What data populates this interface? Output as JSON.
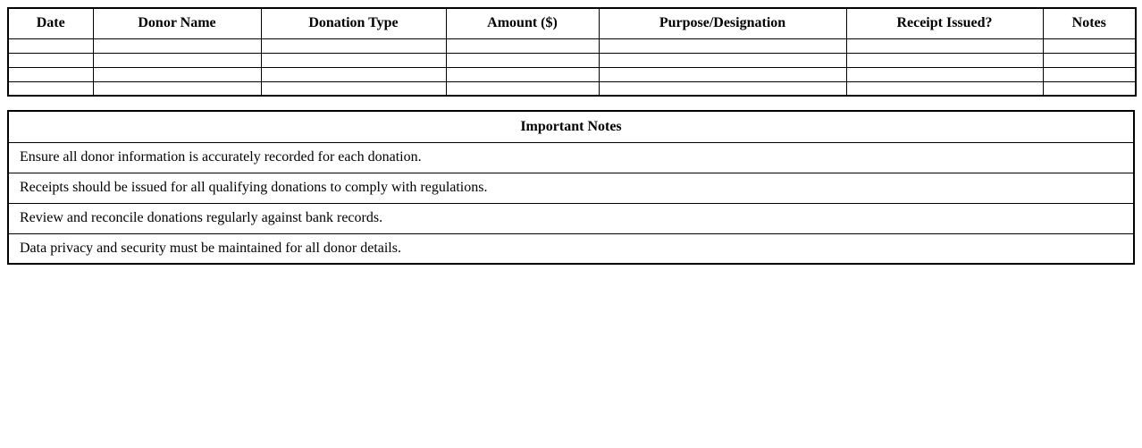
{
  "colors": {
    "background": "#ffffff",
    "border": "#000000",
    "text": "#000000"
  },
  "donation_table": {
    "headers": {
      "date": "Date",
      "donor_name": "Donor Name",
      "donation_type": "Donation Type",
      "amount": "Amount ($)",
      "purpose": "Purpose/Designation",
      "receipt_issued": "Receipt Issued?",
      "notes": "Notes"
    },
    "rows": [
      [
        "",
        "",
        "",
        "",
        "",
        "",
        ""
      ],
      [
        "",
        "",
        "",
        "",
        "",
        "",
        ""
      ],
      [
        "",
        "",
        "",
        "",
        "",
        "",
        ""
      ],
      [
        "",
        "",
        "",
        "",
        "",
        "",
        ""
      ]
    ]
  },
  "notes_table": {
    "title": "Important Notes",
    "notes": [
      "Ensure all donor information is accurately recorded for each donation.",
      "Receipts should be issued for all qualifying donations to comply with regulations.",
      "Review and reconcile donations regularly against bank records.",
      "Data privacy and security must be maintained for all donor details."
    ]
  }
}
